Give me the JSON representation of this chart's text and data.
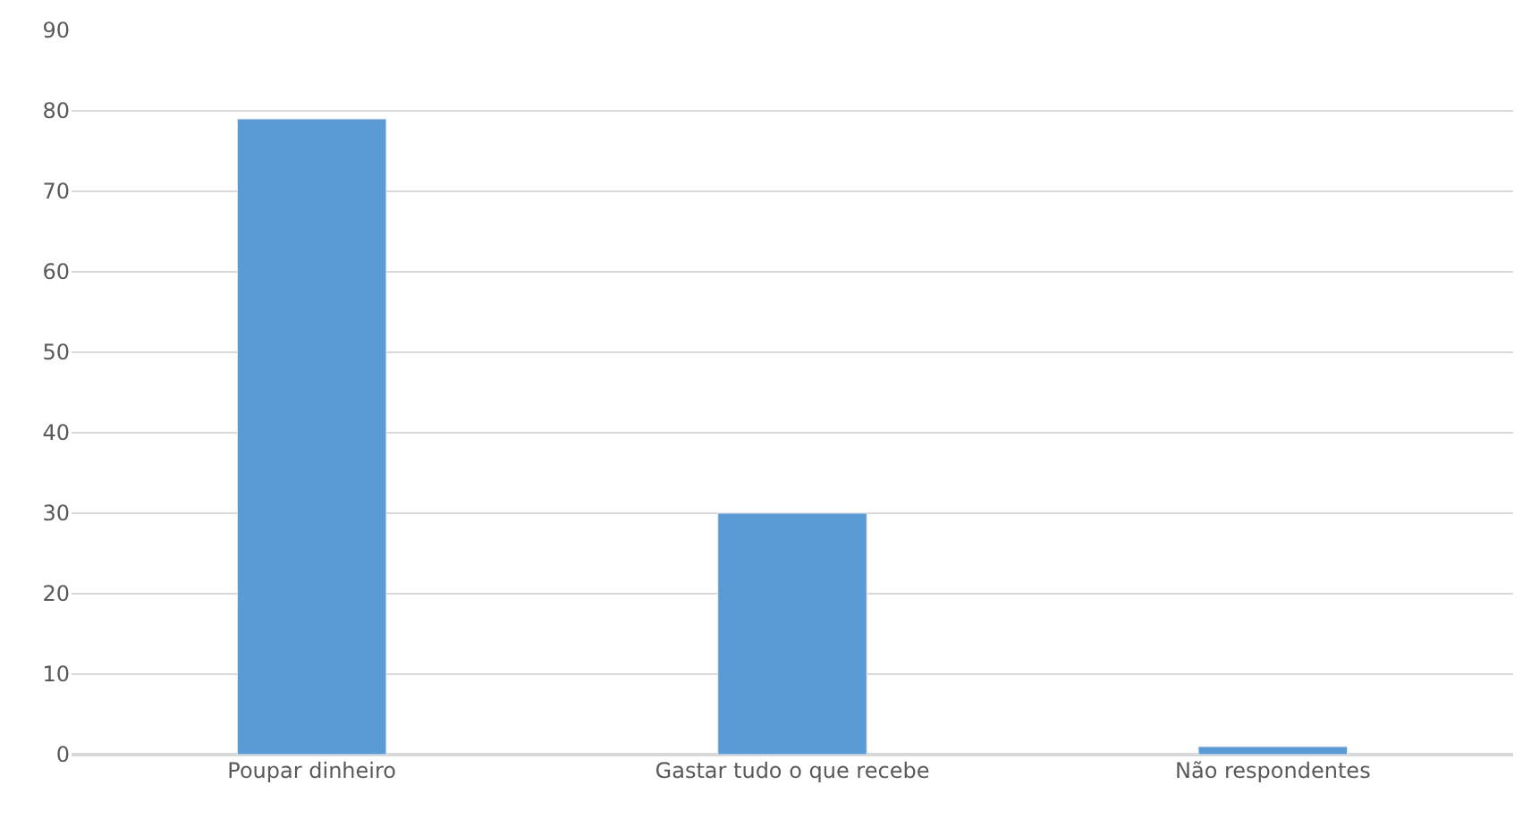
{
  "chart_data": {
    "type": "bar",
    "categories": [
      "Poupar dinheiro",
      "Gastar tudo o que recebe",
      "Não respondentes"
    ],
    "values": [
      79,
      30,
      1
    ],
    "color": "#5b9bd5",
    "ylim": [
      0,
      90
    ],
    "yticks": [
      0,
      10,
      20,
      30,
      40,
      50,
      60,
      70,
      80,
      90
    ],
    "grid": "y"
  }
}
